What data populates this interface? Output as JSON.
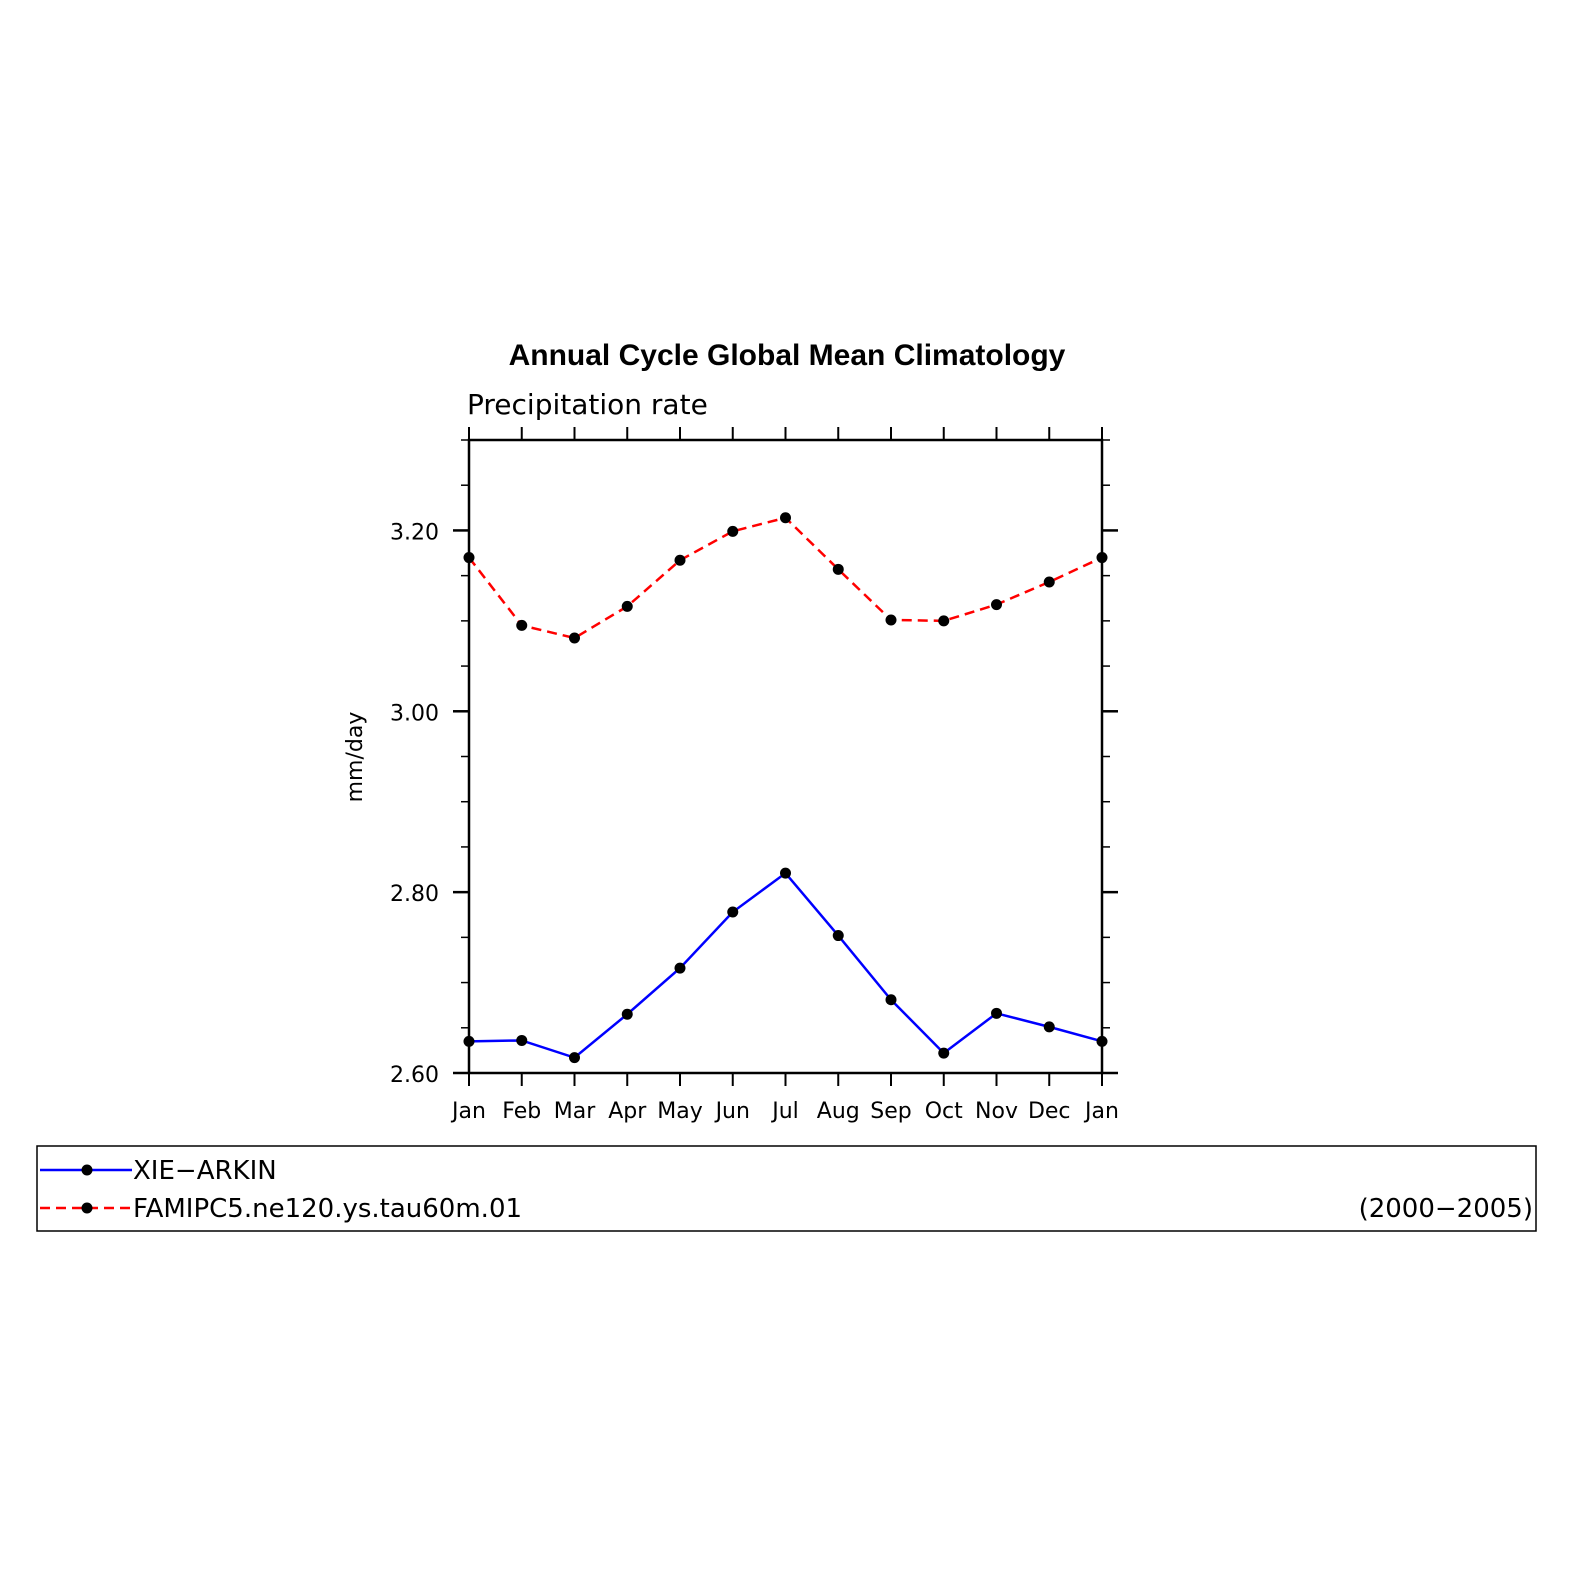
{
  "chart_data": {
    "type": "line",
    "title": "Annual Cycle Global Mean Climatology",
    "subtitle": "Precipitation rate",
    "ylabel": "mm/day",
    "xlabel": "",
    "categories": [
      "Jan",
      "Feb",
      "Mar",
      "Apr",
      "May",
      "Jun",
      "Jul",
      "Aug",
      "Sep",
      "Oct",
      "Nov",
      "Dec",
      "Jan"
    ],
    "ylim": [
      2.6,
      3.3
    ],
    "yticks": [
      2.6,
      2.8,
      3.0,
      3.2
    ],
    "ytick_labels": [
      "2.60",
      "2.80",
      "3.00",
      "3.20"
    ],
    "grid": false,
    "legend_position": "bottom",
    "period_label": "(2000−2005)",
    "series": [
      {
        "name": "XIE−ARKIN",
        "color": "#0000ff",
        "dash": "solid",
        "marker": "dot",
        "values": [
          2.635,
          2.636,
          2.617,
          2.665,
          2.716,
          2.778,
          2.821,
          2.752,
          2.681,
          2.622,
          2.666,
          2.651,
          2.635
        ]
      },
      {
        "name": "FAMIPC5.ne120.ys.tau60m.01",
        "color": "#ff0000",
        "dash": "dashed",
        "marker": "dot",
        "values": [
          3.17,
          3.095,
          3.081,
          3.116,
          3.167,
          3.199,
          3.214,
          3.157,
          3.101,
          3.1,
          3.118,
          3.143,
          3.17
        ]
      }
    ]
  }
}
